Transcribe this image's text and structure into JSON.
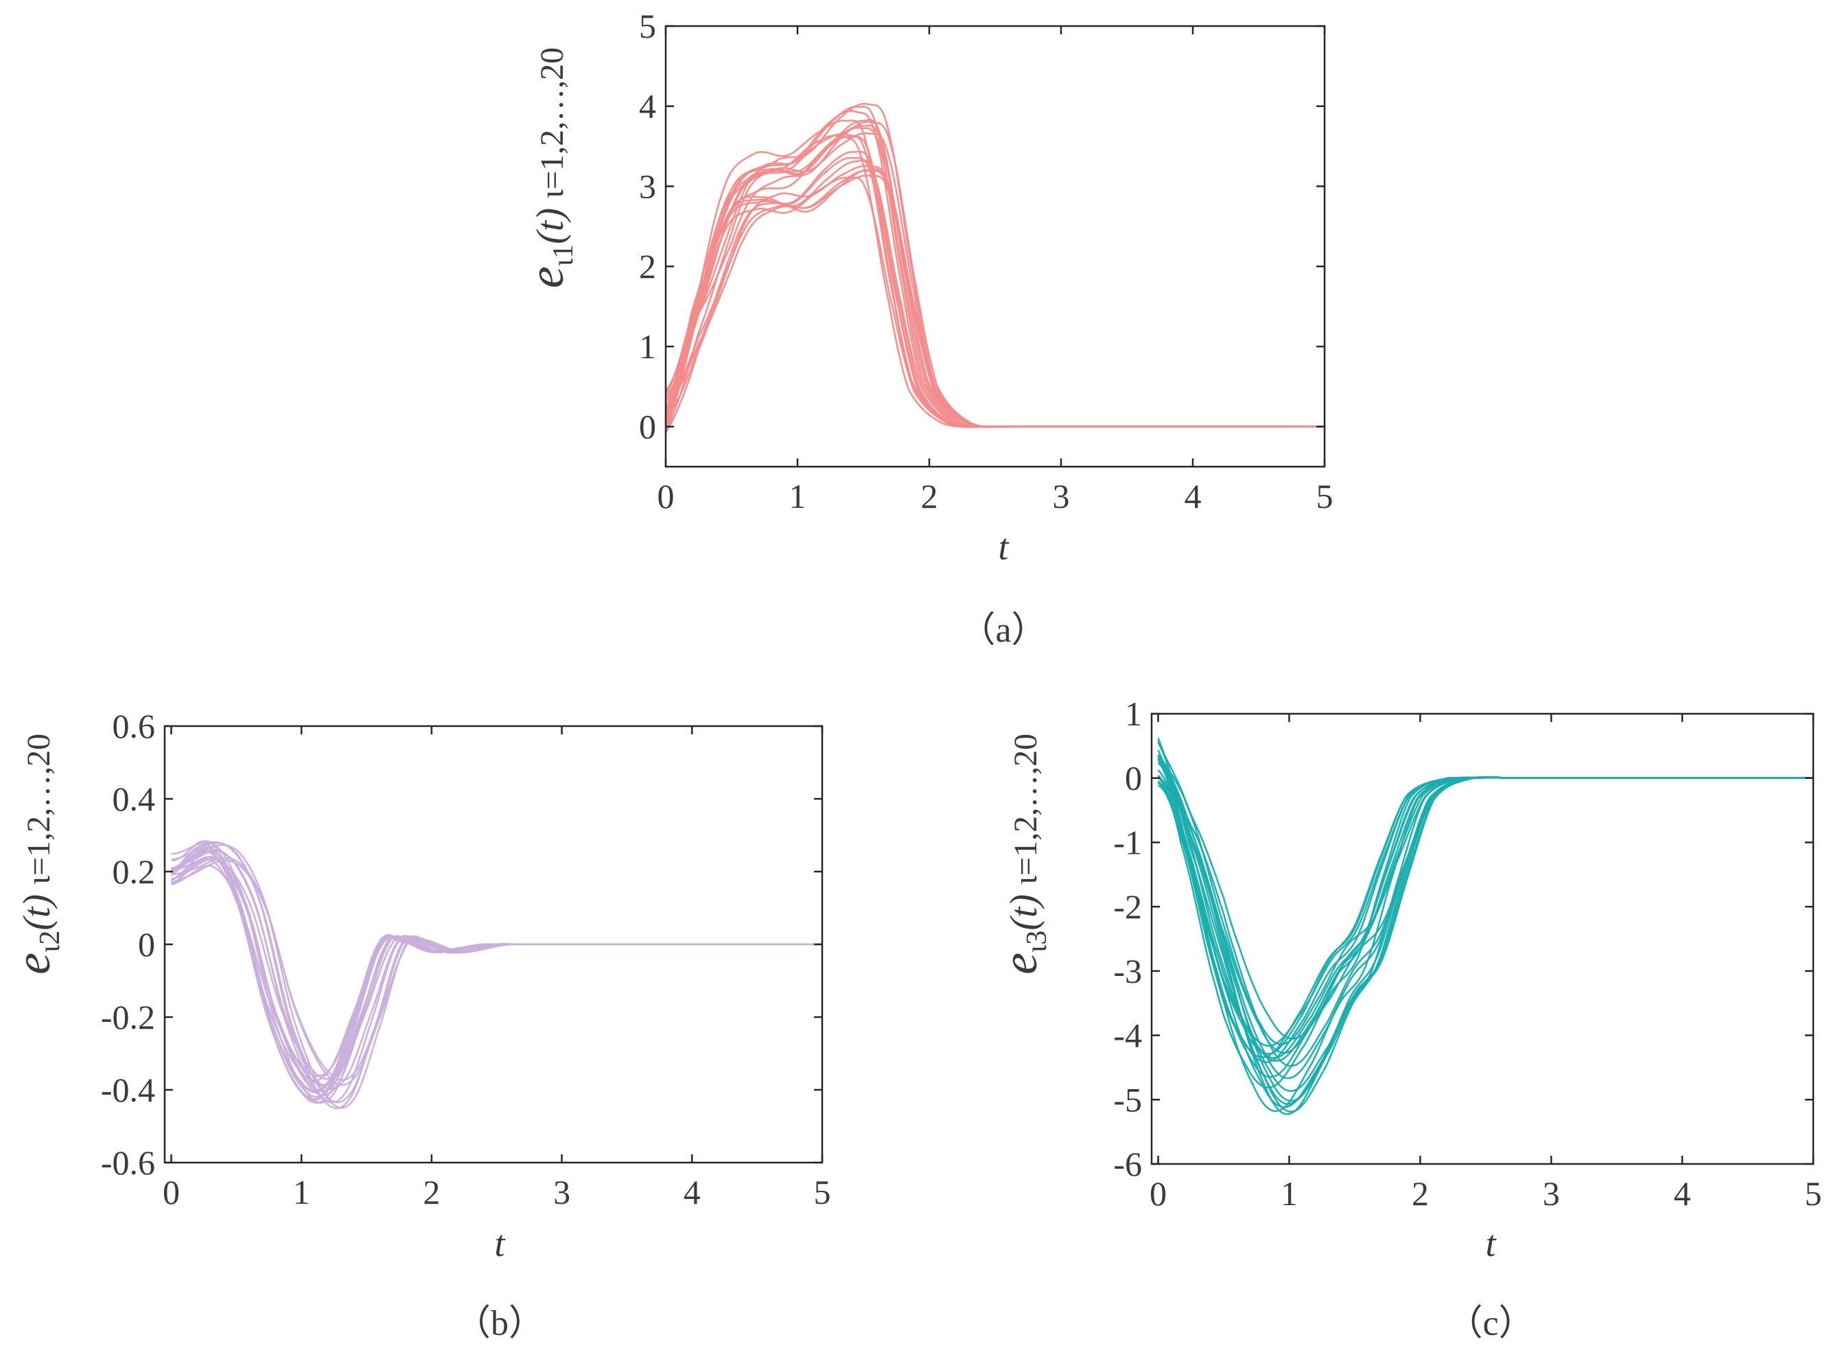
{
  "chart_data": [
    {
      "id": "a",
      "type": "line",
      "caption": "（a）",
      "xlabel": "t",
      "ylabel_var": "e",
      "ylabel_sub": "ι1",
      "ylabel_arg": "(t)",
      "ylabel_index": "ι=1,2,…,20",
      "xlim": [
        0,
        5
      ],
      "ylim": [
        -0.5,
        5
      ],
      "xticks": [
        0,
        1,
        2,
        3,
        4,
        5
      ],
      "yticks": [
        0,
        1,
        2,
        3,
        4,
        5
      ],
      "color": "#f28b8b",
      "n_series": 20,
      "keypoints": [
        [
          0,
          0.2
        ],
        [
          0.2,
          1.2
        ],
        [
          0.5,
          2.7
        ],
        [
          0.75,
          3.05
        ],
        [
          1.0,
          3.05
        ],
        [
          1.25,
          3.4
        ],
        [
          1.45,
          3.55
        ],
        [
          1.6,
          3.3
        ],
        [
          1.8,
          1.6
        ],
        [
          1.95,
          0.5
        ],
        [
          2.2,
          0.05
        ],
        [
          2.5,
          0
        ],
        [
          5,
          0
        ]
      ]
    },
    {
      "id": "b",
      "type": "line",
      "caption": "（b）",
      "xlabel": "t",
      "ylabel_var": "e",
      "ylabel_sub": "ι2",
      "ylabel_arg": "(t)",
      "ylabel_index": "ι=1,2,…,20",
      "xlim": [
        -0.05,
        5
      ],
      "ylim": [
        -0.6,
        0.6
      ],
      "xticks": [
        0,
        1,
        2,
        3,
        4,
        5
      ],
      "yticks": [
        0.6,
        0.4,
        0.2,
        0,
        -0.2,
        -0.4,
        -0.6
      ],
      "ytick_labels": [
        "0.6",
        "0.4",
        "0.2",
        "0",
        "-0.2",
        "-0.4",
        "-0.6"
      ],
      "color": "#c9aedb",
      "n_series": 20,
      "keypoints": [
        [
          0,
          0.2
        ],
        [
          0.35,
          0.25
        ],
        [
          0.6,
          0.12
        ],
        [
          0.85,
          -0.2
        ],
        [
          1.1,
          -0.38
        ],
        [
          1.3,
          -0.38
        ],
        [
          1.5,
          -0.2
        ],
        [
          1.7,
          0.0
        ],
        [
          1.85,
          0.01
        ],
        [
          2.1,
          -0.02
        ],
        [
          2.5,
          0
        ],
        [
          5,
          0
        ]
      ]
    },
    {
      "id": "c",
      "type": "line",
      "caption": "（c）",
      "xlabel": "t",
      "ylabel_var": "e",
      "ylabel_sub": "ι3",
      "ylabel_arg": "(t)",
      "ylabel_index": "ι=1,2,…,20",
      "xlim": [
        -0.05,
        5
      ],
      "ylim": [
        -6,
        1
      ],
      "xticks": [
        0,
        1,
        2,
        3,
        4,
        5
      ],
      "yticks": [
        1,
        0,
        -1,
        -2,
        -3,
        -4,
        -5,
        -6
      ],
      "ytick_labels": [
        "1",
        "0",
        "-1",
        "-2",
        "-3",
        "-4",
        "-5",
        "-6"
      ],
      "color": "#1aadad",
      "n_series": 20,
      "keypoints": [
        [
          0,
          0.2
        ],
        [
          0.2,
          -0.8
        ],
        [
          0.5,
          -3.0
        ],
        [
          0.75,
          -4.3
        ],
        [
          0.95,
          -4.6
        ],
        [
          1.2,
          -3.9
        ],
        [
          1.4,
          -3.1
        ],
        [
          1.6,
          -2.6
        ],
        [
          1.8,
          -1.4
        ],
        [
          2.0,
          -0.3
        ],
        [
          2.3,
          0
        ],
        [
          5,
          0
        ]
      ]
    }
  ]
}
